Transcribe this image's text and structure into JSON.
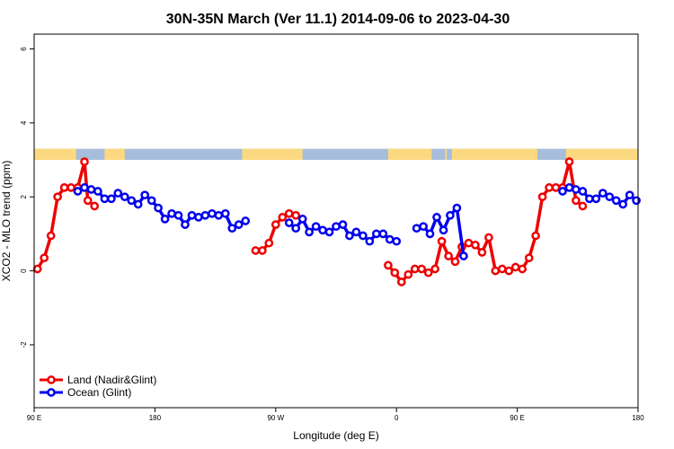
{
  "chart_data": {
    "type": "line",
    "title": "30N-35N March (Ver 11.1)   2014-09-06 to 2023-04-30",
    "xlabel": "Longitude (deg E)",
    "ylabel": "XCO2 - MLO trend (ppm)",
    "xlim": [
      90,
      450
    ],
    "ylim": [
      -3.7,
      6.4
    ],
    "x_ticks": [
      {
        "value": 90,
        "label": "90 E"
      },
      {
        "value": 162,
        "label": "180"
      },
      {
        "value": 234,
        "label": "90 W"
      },
      {
        "value": 306,
        "label": "0"
      },
      {
        "value": 378,
        "label": "90 E"
      },
      {
        "value": 450,
        "label": "180"
      }
    ],
    "y_ticks": [
      {
        "value": -2,
        "label": "-2"
      },
      {
        "value": 0,
        "label": "0"
      },
      {
        "value": 2,
        "label": "2"
      },
      {
        "value": 4,
        "label": "4"
      },
      {
        "value": 6,
        "label": "6"
      }
    ],
    "legend_position": "bottom-left",
    "band": {
      "y_min": 3.0,
      "y_max": 3.3,
      "land_color": "#fcd980",
      "ocean_color": "#a6bddb"
    },
    "land_ranges": [
      [
        90,
        115
      ],
      [
        132,
        144
      ],
      [
        214,
        250
      ],
      [
        301,
        327
      ],
      [
        335,
        336
      ],
      [
        339,
        390
      ],
      [
        407,
        450
      ]
    ],
    "series": [
      {
        "name": "Land (Nadir&Glint)",
        "color": "#ee0000",
        "segments": [
          [
            [
              92,
              0.05
            ],
            [
              96,
              0.35
            ],
            [
              100,
              0.95
            ],
            [
              104,
              2.0
            ],
            [
              108,
              2.25
            ],
            [
              112,
              2.25
            ],
            [
              116,
              2.25
            ],
            [
              120,
              2.95
            ],
            [
              122,
              1.9
            ],
            [
              126,
              1.75
            ]
          ],
          [
            [
              222,
              0.55
            ],
            [
              226,
              0.55
            ],
            [
              230,
              0.75
            ],
            [
              234,
              1.25
            ],
            [
              238,
              1.45
            ],
            [
              242,
              1.55
            ],
            [
              246,
              1.5
            ]
          ],
          [
            [
              301,
              0.15
            ],
            [
              305,
              -0.05
            ],
            [
              309,
              -0.3
            ],
            [
              313,
              -0.1
            ],
            [
              317,
              0.05
            ],
            [
              321,
              0.05
            ],
            [
              325,
              -0.05
            ],
            [
              329,
              0.05
            ],
            [
              333,
              0.8
            ],
            [
              337,
              0.4
            ],
            [
              341,
              0.25
            ],
            [
              345,
              0.65
            ],
            [
              349,
              0.75
            ],
            [
              353,
              0.7
            ],
            [
              357,
              0.5
            ],
            [
              361,
              0.9
            ],
            [
              365,
              0.0
            ],
            [
              369,
              0.05
            ],
            [
              373,
              0.0
            ],
            [
              377,
              0.1
            ],
            [
              381,
              0.05
            ],
            [
              385,
              0.35
            ],
            [
              389,
              0.95
            ],
            [
              393,
              2.0
            ],
            [
              397,
              2.25
            ],
            [
              401,
              2.25
            ],
            [
              405,
              2.25
            ],
            [
              409,
              2.95
            ],
            [
              413,
              1.9
            ],
            [
              417,
              1.75
            ]
          ]
        ]
      },
      {
        "name": "Ocean (Glint)",
        "color": "#0000ee",
        "segments": [
          [
            [
              116,
              2.15
            ],
            [
              120,
              2.25
            ],
            [
              124,
              2.2
            ],
            [
              128,
              2.15
            ],
            [
              132,
              1.95
            ],
            [
              136,
              1.95
            ],
            [
              140,
              2.1
            ],
            [
              144,
              2.0
            ],
            [
              148,
              1.9
            ],
            [
              152,
              1.8
            ],
            [
              156,
              2.05
            ],
            [
              160,
              1.9
            ],
            [
              164,
              1.7
            ],
            [
              168,
              1.4
            ],
            [
              172,
              1.55
            ],
            [
              176,
              1.5
            ],
            [
              180,
              1.25
            ],
            [
              184,
              1.5
            ],
            [
              188,
              1.45
            ],
            [
              192,
              1.5
            ],
            [
              196,
              1.55
            ],
            [
              200,
              1.5
            ],
            [
              204,
              1.55
            ],
            [
              208,
              1.15
            ],
            [
              212,
              1.25
            ],
            [
              216,
              1.35
            ]
          ],
          [
            [
              242,
              1.3
            ],
            [
              246,
              1.15
            ],
            [
              250,
              1.4
            ],
            [
              254,
              1.05
            ],
            [
              258,
              1.2
            ],
            [
              262,
              1.1
            ],
            [
              266,
              1.05
            ],
            [
              270,
              1.2
            ],
            [
              274,
              1.25
            ],
            [
              278,
              0.95
            ],
            [
              282,
              1.05
            ],
            [
              286,
              0.95
            ],
            [
              290,
              0.8
            ],
            [
              294,
              1.0
            ],
            [
              298,
              1.0
            ],
            [
              302,
              0.85
            ],
            [
              306,
              0.8
            ]
          ],
          [
            [
              318,
              1.15
            ],
            [
              322,
              1.2
            ],
            [
              326,
              1.0
            ],
            [
              330,
              1.45
            ],
            [
              334,
              1.1
            ],
            [
              338,
              1.5
            ],
            [
              342,
              1.7
            ],
            [
              346,
              0.4
            ]
          ],
          [
            [
              405,
              2.15
            ],
            [
              409,
              2.25
            ],
            [
              413,
              2.2
            ],
            [
              417,
              2.15
            ],
            [
              421,
              1.95
            ],
            [
              425,
              1.95
            ],
            [
              429,
              2.1
            ],
            [
              433,
              2.0
            ],
            [
              437,
              1.9
            ],
            [
              441,
              1.8
            ],
            [
              445,
              2.05
            ],
            [
              449,
              1.9
            ]
          ]
        ]
      }
    ]
  }
}
